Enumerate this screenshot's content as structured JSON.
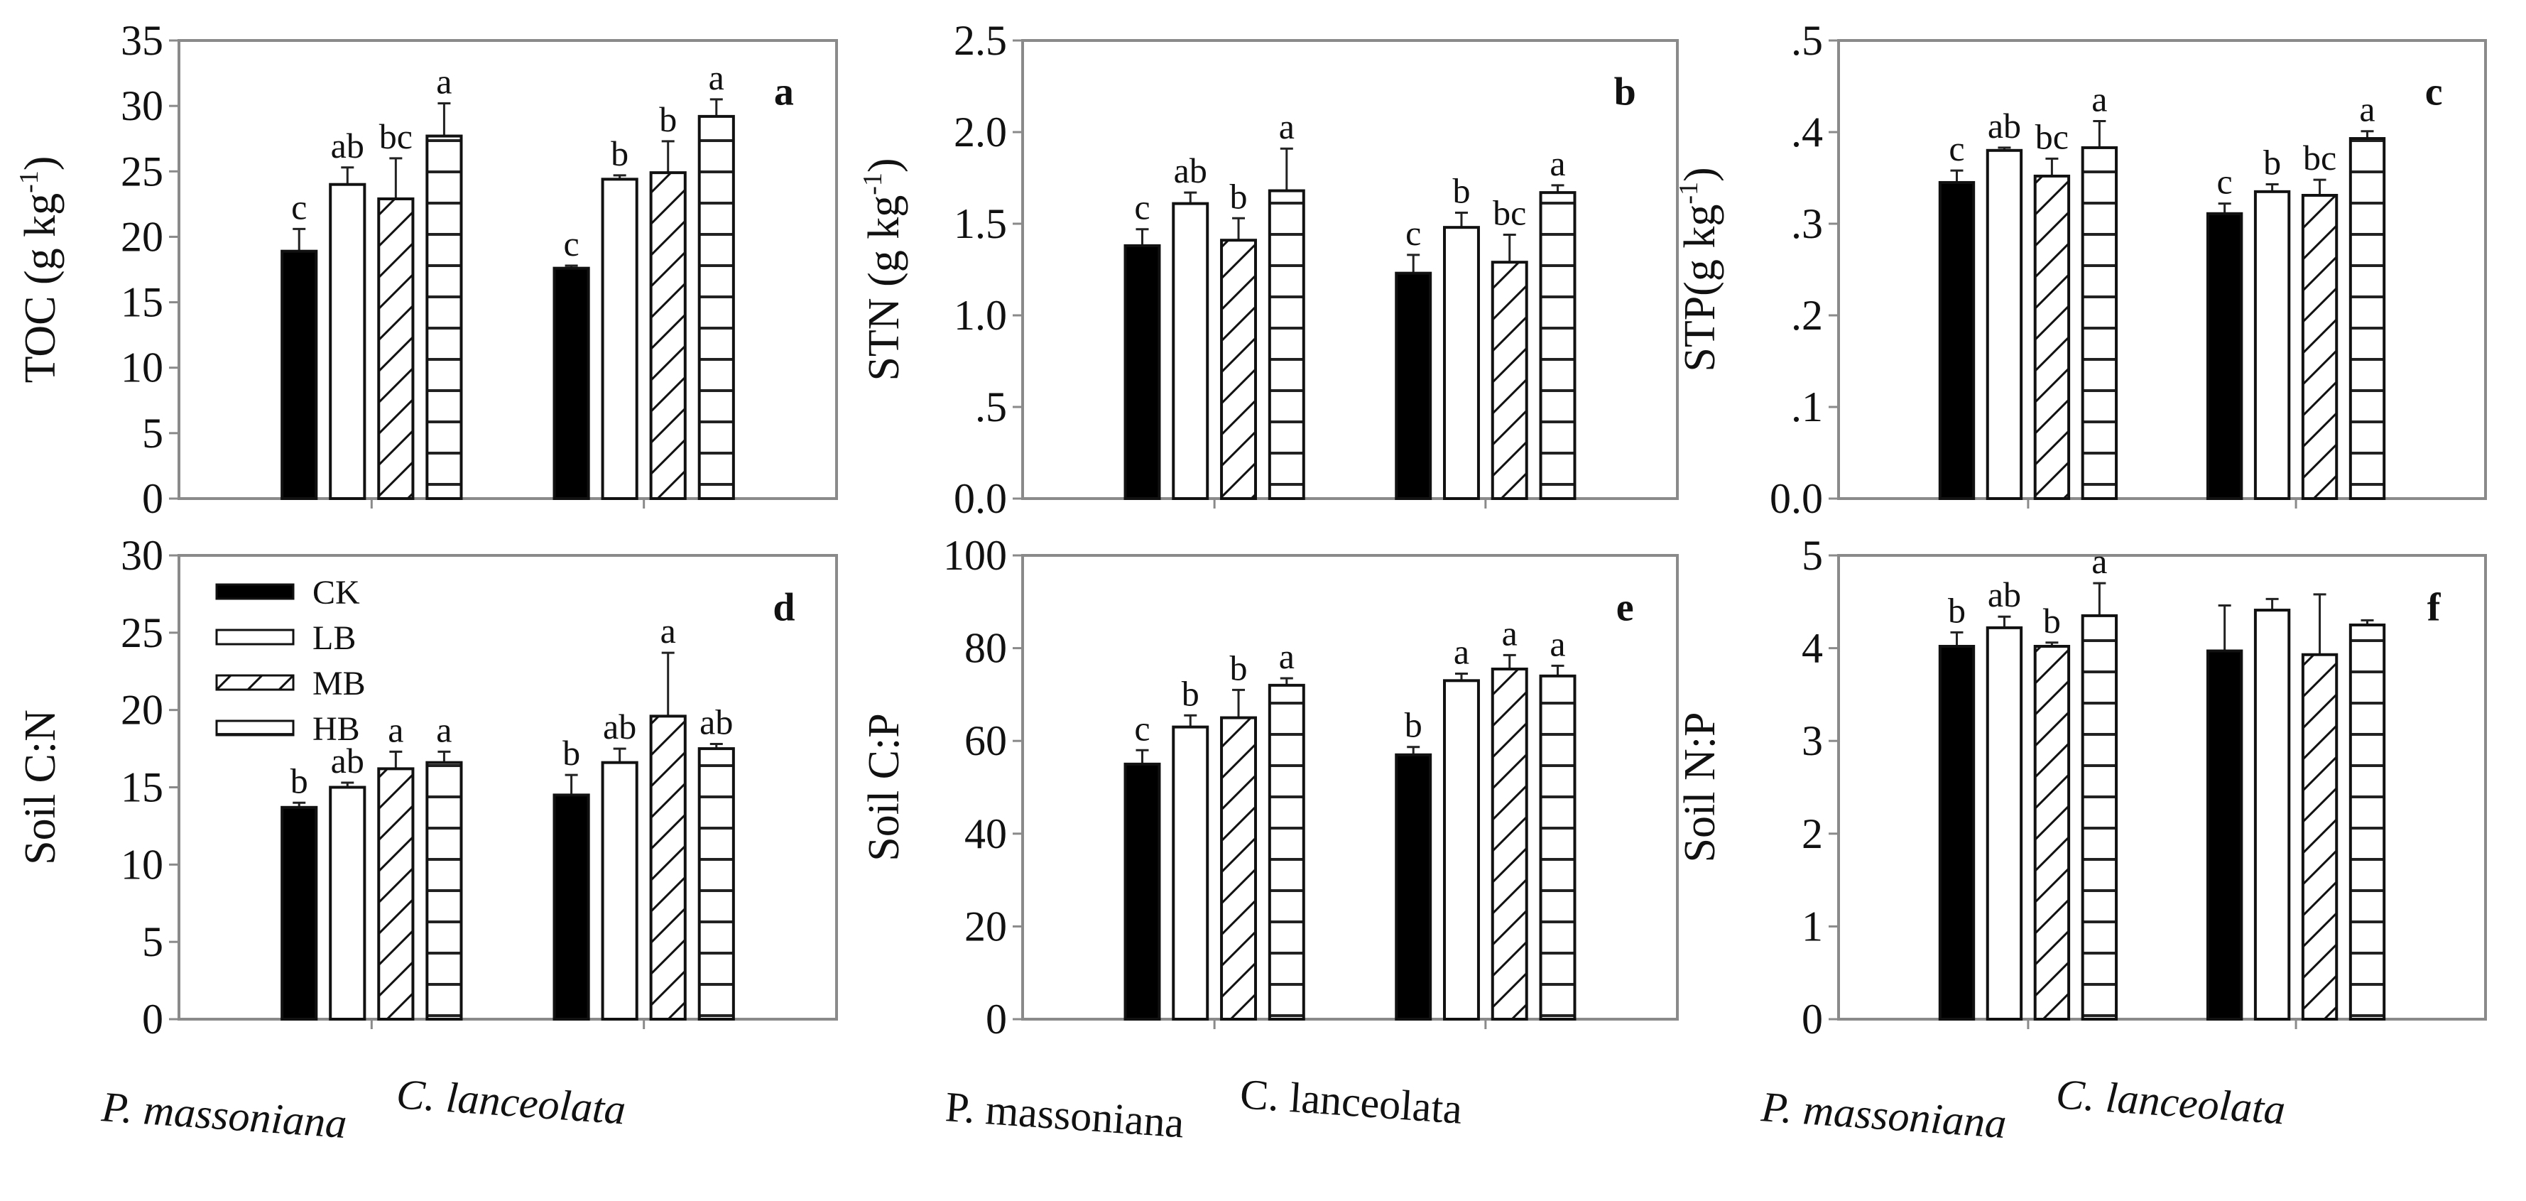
{
  "chart_data": [
    {
      "type": "bar",
      "panel": "a",
      "ylabel": {
        "main": "TOC (g kg",
        "sup": "-1",
        "end": ")"
      },
      "ylim": [
        0,
        35
      ],
      "yticks": [
        "0",
        "5",
        "10",
        "15",
        "20",
        "25",
        "30",
        "35"
      ],
      "ytick_values": [
        0,
        5,
        10,
        15,
        20,
        25,
        30,
        35
      ],
      "categories": [
        "P. massoniana",
        "C. lanceolata"
      ],
      "series": [
        {
          "name": "CK",
          "values": [
            18.9,
            17.6
          ],
          "errors": [
            1.7,
            0.2
          ],
          "letters": [
            "c",
            "c"
          ]
        },
        {
          "name": "LB",
          "values": [
            24.0,
            24.4
          ],
          "errors": [
            1.3,
            0.3
          ],
          "letters": [
            "ab",
            "b"
          ]
        },
        {
          "name": "MB",
          "values": [
            22.9,
            24.9
          ],
          "errors": [
            3.1,
            2.4
          ],
          "letters": [
            "bc",
            "b"
          ]
        },
        {
          "name": "HB",
          "values": [
            27.7,
            29.2
          ],
          "errors": [
            2.5,
            1.3
          ],
          "letters": [
            "a",
            "a"
          ]
        }
      ]
    },
    {
      "type": "bar",
      "panel": "b",
      "ylabel": {
        "main": "STN (g kg",
        "sup": "-1",
        "end": ")"
      },
      "ylim": [
        0,
        2.5
      ],
      "yticks": [
        "0.0",
        ".5",
        "1.0",
        "1.5",
        "2.0",
        "2.5"
      ],
      "ytick_values": [
        0,
        0.5,
        1,
        1.5,
        2,
        2.5
      ],
      "categories": [
        "P. massoniana",
        "C. lanceolata"
      ],
      "series": [
        {
          "name": "CK",
          "values": [
            1.38,
            1.23
          ],
          "errors": [
            0.09,
            0.1
          ],
          "letters": [
            "c",
            "c"
          ]
        },
        {
          "name": "LB",
          "values": [
            1.61,
            1.48
          ],
          "errors": [
            0.06,
            0.08
          ],
          "letters": [
            "ab",
            "b"
          ]
        },
        {
          "name": "MB",
          "values": [
            1.41,
            1.29
          ],
          "errors": [
            0.12,
            0.15
          ],
          "letters": [
            "b",
            "bc"
          ]
        },
        {
          "name": "HB",
          "values": [
            1.68,
            1.67
          ],
          "errors": [
            0.23,
            0.04
          ],
          "letters": [
            "a",
            "a"
          ]
        }
      ]
    },
    {
      "type": "bar",
      "panel": "c",
      "ylabel": {
        "main": "STP(g kg",
        "sup": "-1",
        "end": ")"
      },
      "ylim": [
        0,
        0.5
      ],
      "yticks": [
        "0.0",
        ".1",
        ".2",
        ".3",
        ".4",
        ".5"
      ],
      "ytick_values": [
        0,
        0.1,
        0.2,
        0.3,
        0.4,
        0.5
      ],
      "categories": [
        "P. massoniana",
        "C. lanceolata"
      ],
      "series": [
        {
          "name": "CK",
          "values": [
            0.345,
            0.311
          ],
          "errors": [
            0.013,
            0.011
          ],
          "letters": [
            "c",
            "c"
          ]
        },
        {
          "name": "LB",
          "values": [
            0.38,
            0.335
          ],
          "errors": [
            0.003,
            0.008
          ],
          "letters": [
            "ab",
            "b"
          ]
        },
        {
          "name": "MB",
          "values": [
            0.352,
            0.331
          ],
          "errors": [
            0.019,
            0.017
          ],
          "letters": [
            "bc",
            "bc"
          ]
        },
        {
          "name": "HB",
          "values": [
            0.383,
            0.393
          ],
          "errors": [
            0.029,
            0.008
          ],
          "letters": [
            "a",
            "a"
          ]
        }
      ]
    },
    {
      "type": "bar",
      "panel": "d",
      "ylabel": {
        "main": "Soil C:N"
      },
      "ylim": [
        0,
        30
      ],
      "yticks": [
        "0",
        "5",
        "10",
        "15",
        "20",
        "25",
        "30"
      ],
      "ytick_values": [
        0,
        5,
        10,
        15,
        20,
        25,
        30
      ],
      "categories": [
        "P. massoniana",
        "C. lanceolata"
      ],
      "series": [
        {
          "name": "CK",
          "values": [
            13.7,
            14.5
          ],
          "errors": [
            0.3,
            1.3
          ],
          "letters": [
            "b",
            "b"
          ]
        },
        {
          "name": "LB",
          "values": [
            15.0,
            16.6
          ],
          "errors": [
            0.3,
            0.9
          ],
          "letters": [
            "ab",
            "ab"
          ]
        },
        {
          "name": "MB",
          "values": [
            16.2,
            19.6
          ],
          "errors": [
            1.1,
            4.1
          ],
          "letters": [
            "a",
            "a"
          ]
        },
        {
          "name": "HB",
          "values": [
            16.6,
            17.5
          ],
          "errors": [
            0.7,
            0.3
          ],
          "letters": [
            "a",
            "ab"
          ]
        }
      ]
    },
    {
      "type": "bar",
      "panel": "e",
      "ylabel": {
        "main": "Soil C:P"
      },
      "ylim": [
        0,
        100
      ],
      "yticks": [
        "0",
        "20",
        "40",
        "60",
        "80",
        "100"
      ],
      "ytick_values": [
        0,
        20,
        40,
        60,
        80,
        100
      ],
      "categories": [
        "P. massoniana",
        "C. lanceolata"
      ],
      "series": [
        {
          "name": "CK",
          "values": [
            55,
            57
          ],
          "errors": [
            3,
            1.7
          ],
          "letters": [
            "c",
            "b"
          ]
        },
        {
          "name": "LB",
          "values": [
            63,
            73
          ],
          "errors": [
            2.5,
            1.5
          ],
          "letters": [
            "b",
            "a"
          ]
        },
        {
          "name": "MB",
          "values": [
            65,
            75.5
          ],
          "errors": [
            6,
            3
          ],
          "letters": [
            "b",
            "a"
          ]
        },
        {
          "name": "HB",
          "values": [
            72,
            74
          ],
          "errors": [
            1.5,
            2.2
          ],
          "letters": [
            "a",
            "a"
          ]
        }
      ]
    },
    {
      "type": "bar",
      "panel": "f",
      "ylabel": {
        "main": "Soil N:P"
      },
      "ylim": [
        0,
        5
      ],
      "yticks": [
        "0",
        "1",
        "2",
        "3",
        "4",
        "5"
      ],
      "ytick_values": [
        0,
        1,
        2,
        3,
        4,
        5
      ],
      "categories": [
        "P. massoniana",
        "C. lanceolata"
      ],
      "series": [
        {
          "name": "CK",
          "values": [
            4.02,
            3.97
          ],
          "errors": [
            0.15,
            0.49
          ],
          "letters": [
            "b",
            ""
          ]
        },
        {
          "name": "LB",
          "values": [
            4.22,
            4.41
          ],
          "errors": [
            0.12,
            0.12
          ],
          "letters": [
            "ab",
            ""
          ]
        },
        {
          "name": "MB",
          "values": [
            4.02,
            3.93
          ],
          "errors": [
            0.04,
            0.65
          ],
          "letters": [
            "b",
            ""
          ]
        },
        {
          "name": "HB",
          "values": [
            4.35,
            4.25
          ],
          "errors": [
            0.35,
            0.05
          ],
          "letters": [
            "a",
            ""
          ]
        }
      ]
    }
  ],
  "legend": {
    "placement": "top-left of panel d",
    "items": [
      "CK",
      "LB",
      "MB",
      "HB"
    ]
  },
  "fills": {
    "CK": "#000000",
    "LB": "#ffffff",
    "MB": "hatch-diagonal",
    "HB": "hatch-horizontal"
  },
  "axis_color": "#8a8a8a"
}
